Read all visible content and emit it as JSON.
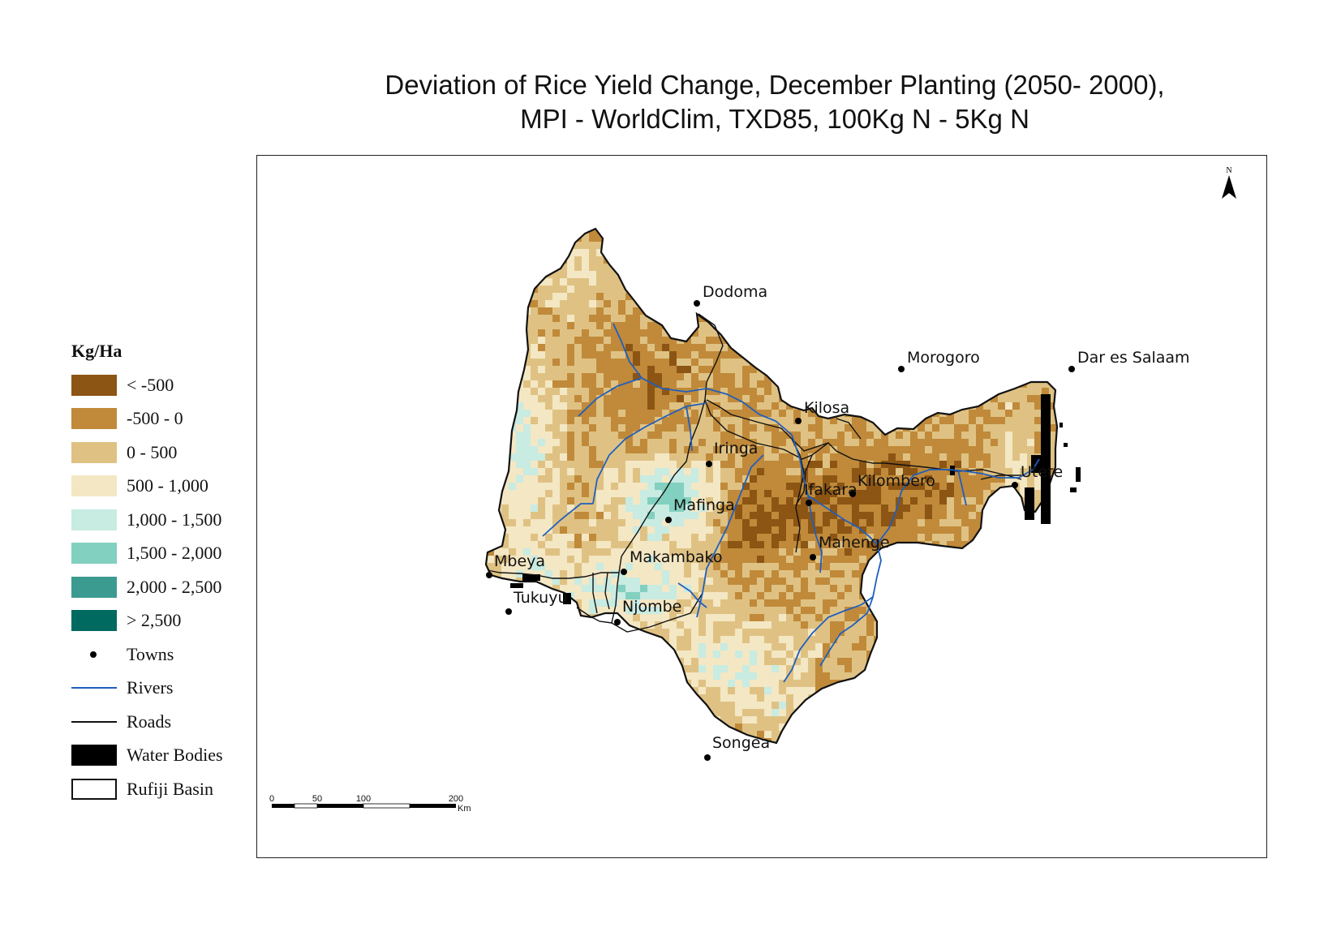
{
  "title": {
    "line1": "Deviation of Rice Yield Change, December Planting (2050- 2000),",
    "line2": "MPI - WorldClim, TXD85, 100Kg N - 5Kg N"
  },
  "legend": {
    "title": "Kg/Ha",
    "classes": [
      {
        "label": "< -500",
        "color": "#8c5513"
      },
      {
        "label": "-500 - 0",
        "color": "#c08a3a"
      },
      {
        "label": "0 - 500",
        "color": "#dfc283"
      },
      {
        "label": "500 - 1,000",
        "color": "#f4e7c4"
      },
      {
        "label": "1,000 - 1,500",
        "color": "#c8ebe2"
      },
      {
        "label": "1,500 - 2,000",
        "color": "#82d0c0"
      },
      {
        "label": "2,000 - 2,500",
        "color": "#3c9b90"
      },
      {
        "label": "> 2,500",
        "color": "#006a60"
      }
    ],
    "symbols": {
      "towns": "Towns",
      "rivers": "Rivers",
      "roads": "Roads",
      "water_bodies": "Water Bodies",
      "basin": "Rufiji Basin"
    },
    "river_color": "#1f5fbf"
  },
  "towns": [
    {
      "name": "Dodoma"
    },
    {
      "name": "Morogoro"
    },
    {
      "name": "Dar es Salaam"
    },
    {
      "name": "Kilosa"
    },
    {
      "name": "Iringa"
    },
    {
      "name": "Ifakara"
    },
    {
      "name": "Kilombero"
    },
    {
      "name": "Utete"
    },
    {
      "name": "Mafinga"
    },
    {
      "name": "Mahenge"
    },
    {
      "name": "Mbeya"
    },
    {
      "name": "Makambako"
    },
    {
      "name": "Tukuyu"
    },
    {
      "name": "Njombe"
    },
    {
      "name": "Songea"
    }
  ],
  "north_arrow": "N",
  "scale_bar": {
    "ticks": [
      "0",
      "50",
      "100",
      "200"
    ],
    "unit": "Km"
  }
}
